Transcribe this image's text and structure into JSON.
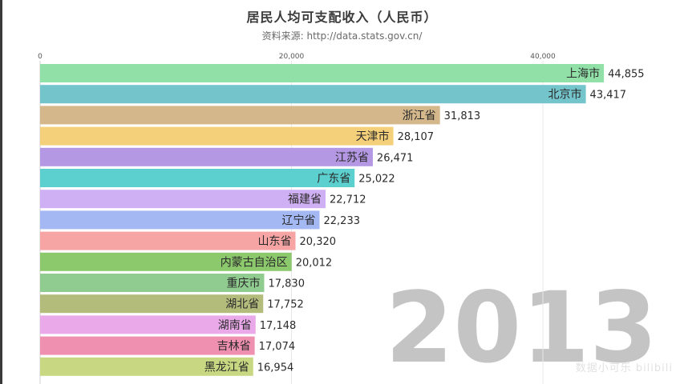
{
  "chart_data": {
    "type": "bar",
    "orientation": "horizontal",
    "title": "居民人均可支配收入（人民币）",
    "subtitle": "资料来源: http://data.stats.gov.cn/",
    "xlim": [
      0,
      50000
    ],
    "ticks": [
      0,
      20000,
      40000
    ],
    "tick_labels": [
      "0",
      "20,000",
      "40,000"
    ],
    "grid": true,
    "year": "2013",
    "categories": [
      "上海市",
      "北京市",
      "浙江省",
      "天津市",
      "江苏省",
      "广东省",
      "福建省",
      "辽宁省",
      "山东省",
      "内蒙古自治区",
      "重庆市",
      "湖北省",
      "湖南省",
      "吉林省",
      "黑龙江省"
    ],
    "values": [
      44855,
      43417,
      31813,
      28107,
      26471,
      25022,
      22712,
      22233,
      20320,
      20012,
      17830,
      17752,
      17148,
      17074,
      16954
    ],
    "value_labels": [
      "44,855",
      "43,417",
      "31,813",
      "28,107",
      "26,471",
      "25,022",
      "22,712",
      "22,233",
      "20,320",
      "20,012",
      "17,830",
      "17,752",
      "17,148",
      "17,074",
      "16,954"
    ],
    "colors": [
      "#90e0a8",
      "#74c4cc",
      "#d4b88c",
      "#f5d07a",
      "#b498e4",
      "#5ccfcf",
      "#d0b0f4",
      "#a4b8f4",
      "#f7a4a4",
      "#8cc86c",
      "#90cc90",
      "#b4bc7c",
      "#eaaaea",
      "#f090b0",
      "#c8d882"
    ]
  },
  "watermark": "数据小可乐 bilibili"
}
